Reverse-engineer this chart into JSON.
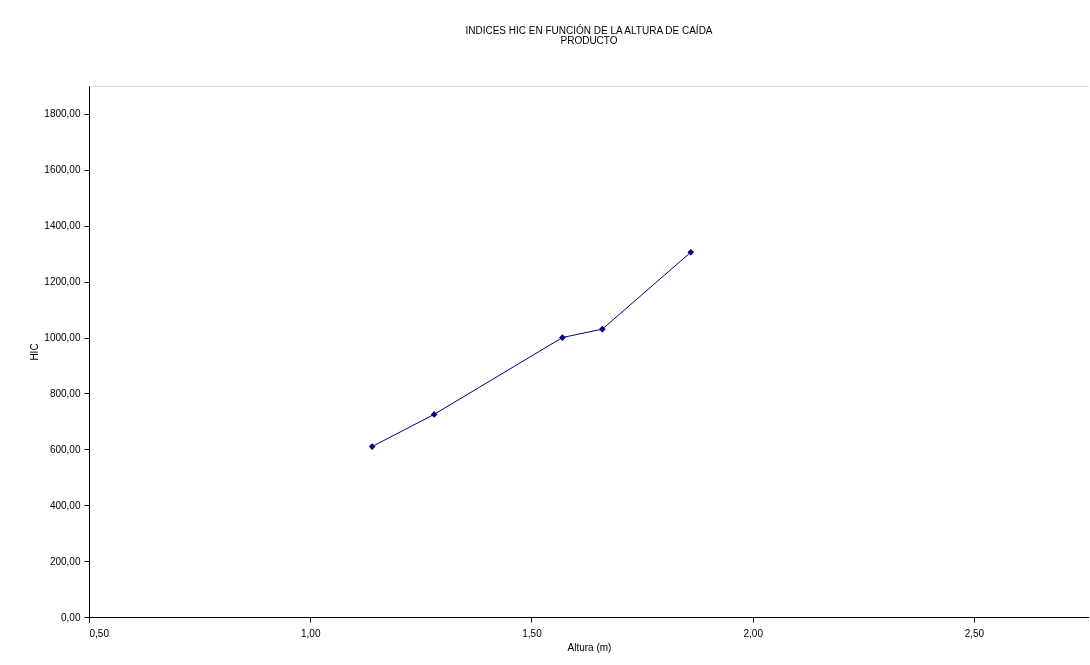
{
  "chart_data": {
    "type": "line",
    "title": "INDICES HIC EN FUNCIÓN DE LA ALTURA DE CAÍDA",
    "subtitle": "PRODUCTO",
    "xlabel": "Altura (m)",
    "ylabel": "HIC",
    "x": [
      1.14,
      1.28,
      1.57,
      1.66,
      1.86
    ],
    "series": [
      {
        "color": "#000080",
        "values": [
          610,
          725,
          1000,
          1030,
          1305
        ]
      }
    ],
    "xlim": [
      0.5,
      2.76
    ],
    "xticks": [
      {
        "value": 0.5,
        "label": "0,50"
      },
      {
        "value": 1.0,
        "label": "1,00"
      },
      {
        "value": 1.5,
        "label": "1,50"
      },
      {
        "value": 2.0,
        "label": "2,00"
      },
      {
        "value": 2.5,
        "label": "2,50"
      }
    ],
    "ylim": [
      0,
      1900
    ],
    "yticks": [
      {
        "value": 0,
        "label": "0,00"
      },
      {
        "value": 200,
        "label": "200,00"
      },
      {
        "value": 400,
        "label": "400,00"
      },
      {
        "value": 600,
        "label": "600,00"
      },
      {
        "value": 800,
        "label": "800,00"
      },
      {
        "value": 1000,
        "label": "1000,00"
      },
      {
        "value": 1200,
        "label": "1200,00"
      },
      {
        "value": 1400,
        "label": "1400,00"
      },
      {
        "value": 1600,
        "label": "1600,00"
      },
      {
        "value": 1800,
        "label": "1800,00"
      }
    ],
    "marker": "diamond",
    "line_style": "solid",
    "grid": false
  }
}
